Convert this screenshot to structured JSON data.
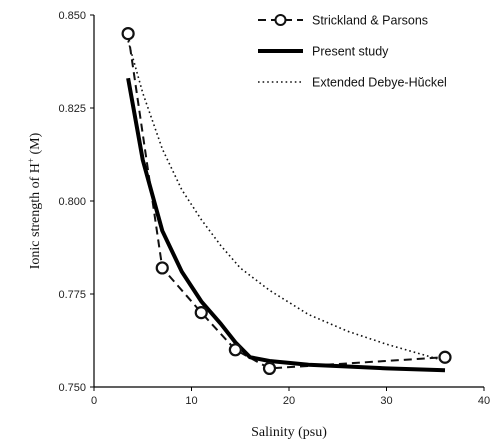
{
  "chart_data": {
    "type": "line",
    "title": "",
    "xlabel": "Salinity (psu)",
    "ylabel": "Ionic strength of H+ (M)",
    "ylabel_parts": {
      "main": "Ionic strength of H",
      "sup": "+",
      "unit": " (M)"
    },
    "xlim": [
      0,
      40
    ],
    "ylim": [
      0.75,
      0.85
    ],
    "xticks": [
      0,
      10,
      20,
      30,
      40
    ],
    "yticks": [
      0.75,
      0.775,
      0.8,
      0.825,
      0.85
    ],
    "xtick_labels": [
      "0",
      "10",
      "20",
      "30",
      "40"
    ],
    "ytick_labels": [
      "0.750",
      "0.775",
      "0.800",
      "0.825",
      "0.850"
    ],
    "grid": false,
    "legend_position": "top-right",
    "series": [
      {
        "name": "Strickland & Parsons",
        "style": "dashed-markers",
        "color": "#111111",
        "x": [
          3.5,
          7,
          11,
          14.5,
          18,
          36
        ],
        "y": [
          0.845,
          0.782,
          0.77,
          0.76,
          0.755,
          0.758
        ]
      },
      {
        "name": "Present study",
        "style": "solid-thick",
        "color": "#000000",
        "x": [
          3.5,
          5,
          7,
          9,
          11,
          13,
          14.5,
          16,
          18,
          22,
          26,
          30,
          36
        ],
        "y": [
          0.833,
          0.811,
          0.792,
          0.781,
          0.773,
          0.767,
          0.762,
          0.758,
          0.757,
          0.756,
          0.7555,
          0.755,
          0.7545
        ]
      },
      {
        "name": "Extended Debye-Hŭckel",
        "style": "dotted",
        "color": "#111111",
        "x": [
          3.5,
          5,
          7,
          9,
          11,
          13,
          15,
          18,
          22,
          26,
          30,
          36
        ],
        "y": [
          0.843,
          0.829,
          0.814,
          0.803,
          0.795,
          0.788,
          0.782,
          0.776,
          0.7695,
          0.765,
          0.7615,
          0.757
        ]
      }
    ]
  }
}
